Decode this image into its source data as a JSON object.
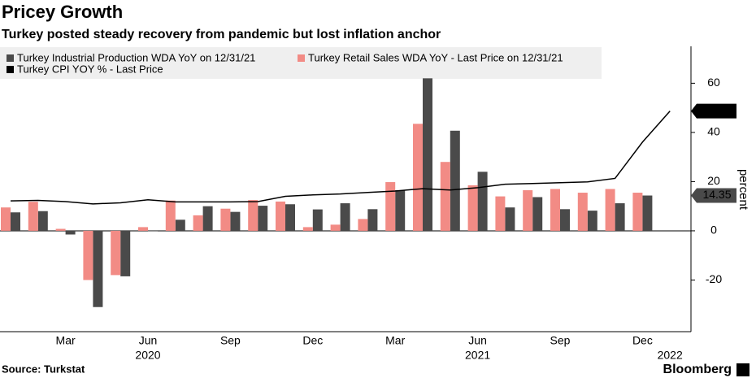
{
  "chart_data": {
    "type": "bar-line",
    "title": "Pricey Growth",
    "subtitle": "Turkey posted steady recovery from pandemic but lost inflation anchor",
    "source": "Source: Turkstat",
    "brand": "Bloomberg",
    "y_axis_label": "percent",
    "categories": [
      null,
      null,
      "Mar",
      null,
      null,
      "Jun",
      null,
      null,
      "Sep",
      null,
      null,
      "Dec",
      null,
      null,
      "Mar",
      null,
      null,
      "Jun",
      null,
      null,
      "Sep",
      null,
      null,
      "Dec",
      null
    ],
    "year_labels": [
      null,
      null,
      null,
      null,
      null,
      "2020",
      null,
      null,
      null,
      null,
      null,
      null,
      null,
      null,
      null,
      null,
      null,
      "2021",
      null,
      null,
      null,
      null,
      null,
      null,
      "2022"
    ],
    "series": [
      {
        "name": "Turkey Industrial Production WDA YoY on 12/31/21",
        "color": "#4a4a4a",
        "kind": "bar",
        "values": [
          7.5,
          8,
          -1.5,
          -31,
          -18.5,
          -0.2,
          4.5,
          10,
          7.7,
          10.2,
          10.8,
          8.7,
          11.2,
          8.8,
          16.5,
          62,
          40.7,
          24,
          9.5,
          13.7,
          8.8,
          8.2,
          11.2,
          14.35,
          null
        ]
      },
      {
        "name": "Turkey Retail Sales WDA YoY - Last Price on 12/31/21",
        "color": "#f28b85",
        "kind": "bar",
        "values": [
          9.5,
          11.8,
          0.8,
          -20,
          -18,
          1.5,
          12.3,
          6.3,
          9,
          12.5,
          11.9,
          1.5,
          2.5,
          4.8,
          19.8,
          43.5,
          28,
          18.5,
          14,
          16.5,
          17,
          15.5,
          17,
          15.5,
          null
        ]
      },
      {
        "name": "Turkey CPI YOY % - Last Price",
        "color": "#000000",
        "kind": "line",
        "values": [
          12.15,
          12.37,
          11.86,
          10.94,
          11.39,
          12.62,
          11.76,
          11.77,
          11.75,
          11.89,
          14.03,
          14.6,
          14.97,
          15.61,
          16.19,
          17.14,
          16.59,
          17.53,
          18.95,
          19.25,
          19.58,
          19.89,
          21.31,
          36.08,
          48.69
        ]
      }
    ],
    "ylim": [
      -41,
      75
    ],
    "yticks": [
      -20,
      0,
      20,
      40,
      60
    ]
  }
}
